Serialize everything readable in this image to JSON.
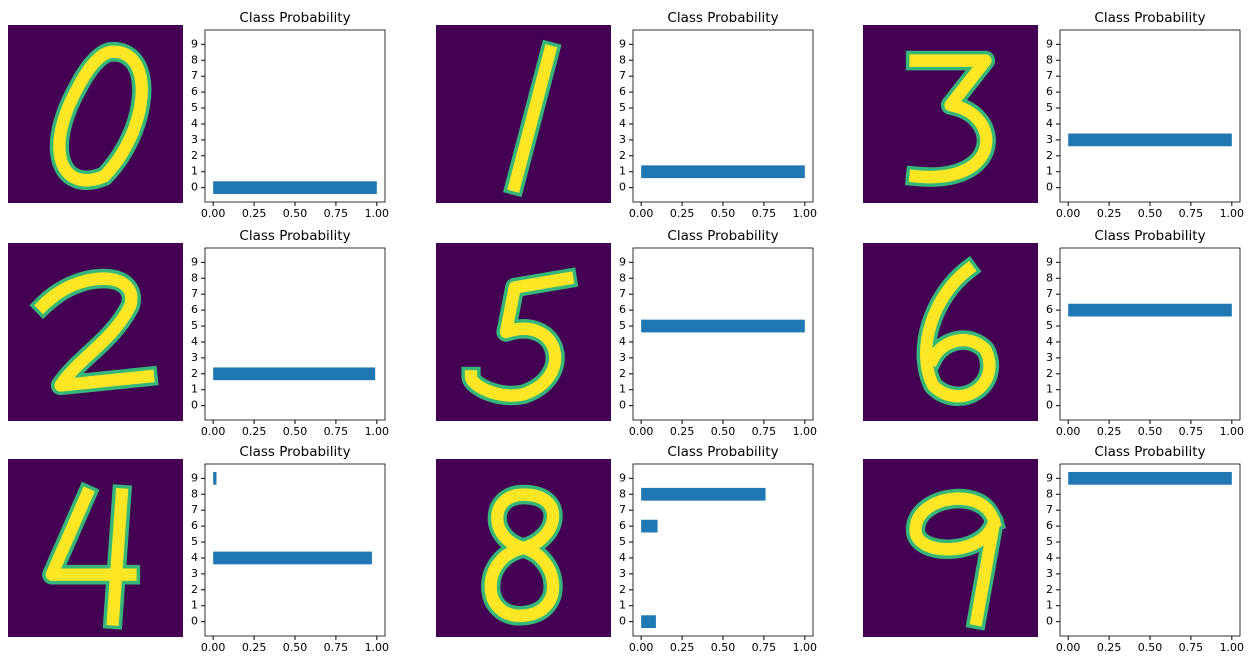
{
  "chart_data": [
    {
      "type": "bar",
      "orientation": "horizontal",
      "title": "Class Probability",
      "color": "#1f77b4",
      "categories": [
        "0",
        "1",
        "2",
        "3",
        "4",
        "5",
        "6",
        "7",
        "8",
        "9"
      ],
      "values": [
        1,
        0,
        0,
        0,
        0,
        0,
        0,
        0,
        0,
        0
      ],
      "xlim": [
        -0.05,
        1.05
      ],
      "xticks": [
        {
          "value": 0,
          "label": "0.00"
        },
        {
          "value": 0.25,
          "label": "0.25"
        },
        {
          "value": 0.5,
          "label": "0.50"
        },
        {
          "value": 0.75,
          "label": "0.75"
        },
        {
          "value": 1,
          "label": "1.00"
        }
      ]
    },
    {
      "type": "bar",
      "orientation": "horizontal",
      "title": "Class Probability",
      "color": "#1f77b4",
      "categories": [
        "0",
        "1",
        "2",
        "3",
        "4",
        "5",
        "6",
        "7",
        "8",
        "9"
      ],
      "values": [
        0,
        1,
        0,
        0,
        0,
        0,
        0,
        0,
        0,
        0
      ],
      "xlim": [
        -0.05,
        1.05
      ],
      "xticks": [
        {
          "value": 0,
          "label": "0.00"
        },
        {
          "value": 0.25,
          "label": "0.25"
        },
        {
          "value": 0.5,
          "label": "0.50"
        },
        {
          "value": 0.75,
          "label": "0.75"
        },
        {
          "value": 1,
          "label": "1.00"
        }
      ]
    },
    {
      "type": "bar",
      "orientation": "horizontal",
      "title": "Class Probability",
      "color": "#1f77b4",
      "categories": [
        "0",
        "1",
        "2",
        "3",
        "4",
        "5",
        "6",
        "7",
        "8",
        "9"
      ],
      "values": [
        0,
        0,
        0,
        1,
        0,
        0,
        0,
        0,
        0,
        0
      ],
      "xlim": [
        -0.05,
        1.05
      ],
      "xticks": [
        {
          "value": 0,
          "label": "0.00"
        },
        {
          "value": 0.25,
          "label": "0.25"
        },
        {
          "value": 0.5,
          "label": "0.50"
        },
        {
          "value": 0.75,
          "label": "0.75"
        },
        {
          "value": 1,
          "label": "1.00"
        }
      ]
    },
    {
      "type": "bar",
      "orientation": "horizontal",
      "title": "Class Probability",
      "color": "#1f77b4",
      "categories": [
        "0",
        "1",
        "2",
        "3",
        "4",
        "5",
        "6",
        "7",
        "8",
        "9"
      ],
      "values": [
        0,
        0,
        0.99,
        0,
        0,
        0,
        0,
        0,
        0,
        0
      ],
      "xlim": [
        -0.05,
        1.05
      ],
      "xticks": [
        {
          "value": 0,
          "label": "0.00"
        },
        {
          "value": 0.25,
          "label": "0.25"
        },
        {
          "value": 0.5,
          "label": "0.50"
        },
        {
          "value": 0.75,
          "label": "0.75"
        },
        {
          "value": 1,
          "label": "1.00"
        }
      ]
    },
    {
      "type": "bar",
      "orientation": "horizontal",
      "title": "Class Probability",
      "color": "#1f77b4",
      "categories": [
        "0",
        "1",
        "2",
        "3",
        "4",
        "5",
        "6",
        "7",
        "8",
        "9"
      ],
      "values": [
        0,
        0,
        0,
        0,
        0,
        1,
        0,
        0,
        0,
        0
      ],
      "xlim": [
        -0.05,
        1.05
      ],
      "xticks": [
        {
          "value": 0,
          "label": "0.00"
        },
        {
          "value": 0.25,
          "label": "0.25"
        },
        {
          "value": 0.5,
          "label": "0.50"
        },
        {
          "value": 0.75,
          "label": "0.75"
        },
        {
          "value": 1,
          "label": "1.00"
        }
      ]
    },
    {
      "type": "bar",
      "orientation": "horizontal",
      "title": "Class Probability",
      "color": "#1f77b4",
      "categories": [
        "0",
        "1",
        "2",
        "3",
        "4",
        "5",
        "6",
        "7",
        "8",
        "9"
      ],
      "values": [
        0,
        0,
        0,
        0,
        0,
        0,
        1,
        0,
        0,
        0
      ],
      "xlim": [
        -0.05,
        1.05
      ],
      "xticks": [
        {
          "value": 0,
          "label": "0.00"
        },
        {
          "value": 0.25,
          "label": "0.25"
        },
        {
          "value": 0.5,
          "label": "0.50"
        },
        {
          "value": 0.75,
          "label": "0.75"
        },
        {
          "value": 1,
          "label": "1.00"
        }
      ]
    },
    {
      "type": "bar",
      "orientation": "horizontal",
      "title": "Class Probability",
      "color": "#1f77b4",
      "categories": [
        "0",
        "1",
        "2",
        "3",
        "4",
        "5",
        "6",
        "7",
        "8",
        "9"
      ],
      "values": [
        0,
        0,
        0,
        0,
        0.97,
        0,
        0,
        0,
        0,
        0.02
      ],
      "xlim": [
        -0.05,
        1.05
      ],
      "xticks": [
        {
          "value": 0,
          "label": "0.00"
        },
        {
          "value": 0.25,
          "label": "0.25"
        },
        {
          "value": 0.5,
          "label": "0.50"
        },
        {
          "value": 0.75,
          "label": "0.75"
        },
        {
          "value": 1,
          "label": "1.00"
        }
      ]
    },
    {
      "type": "bar",
      "orientation": "horizontal",
      "title": "Class Probability",
      "color": "#1f77b4",
      "categories": [
        "0",
        "1",
        "2",
        "3",
        "4",
        "5",
        "6",
        "7",
        "8",
        "9"
      ],
      "values": [
        0.09,
        0,
        0,
        0,
        0,
        0,
        0.1,
        0,
        0.76,
        0
      ],
      "xlim": [
        -0.05,
        1.05
      ],
      "xticks": [
        {
          "value": 0,
          "label": "0.00"
        },
        {
          "value": 0.25,
          "label": "0.25"
        },
        {
          "value": 0.5,
          "label": "0.50"
        },
        {
          "value": 0.75,
          "label": "0.75"
        },
        {
          "value": 1,
          "label": "1.00"
        }
      ]
    },
    {
      "type": "bar",
      "orientation": "horizontal",
      "title": "Class Probability",
      "color": "#1f77b4",
      "categories": [
        "0",
        "1",
        "2",
        "3",
        "4",
        "5",
        "6",
        "7",
        "8",
        "9"
      ],
      "values": [
        0,
        0,
        0,
        0,
        0,
        0,
        0,
        0,
        0,
        1
      ],
      "xlim": [
        -0.05,
        1.05
      ],
      "xticks": [
        {
          "value": 0,
          "label": "0.00"
        },
        {
          "value": 0.25,
          "label": "0.25"
        },
        {
          "value": 0.5,
          "label": "0.50"
        },
        {
          "value": 0.75,
          "label": "0.75"
        },
        {
          "value": 1,
          "label": "1.00"
        }
      ]
    }
  ]
}
